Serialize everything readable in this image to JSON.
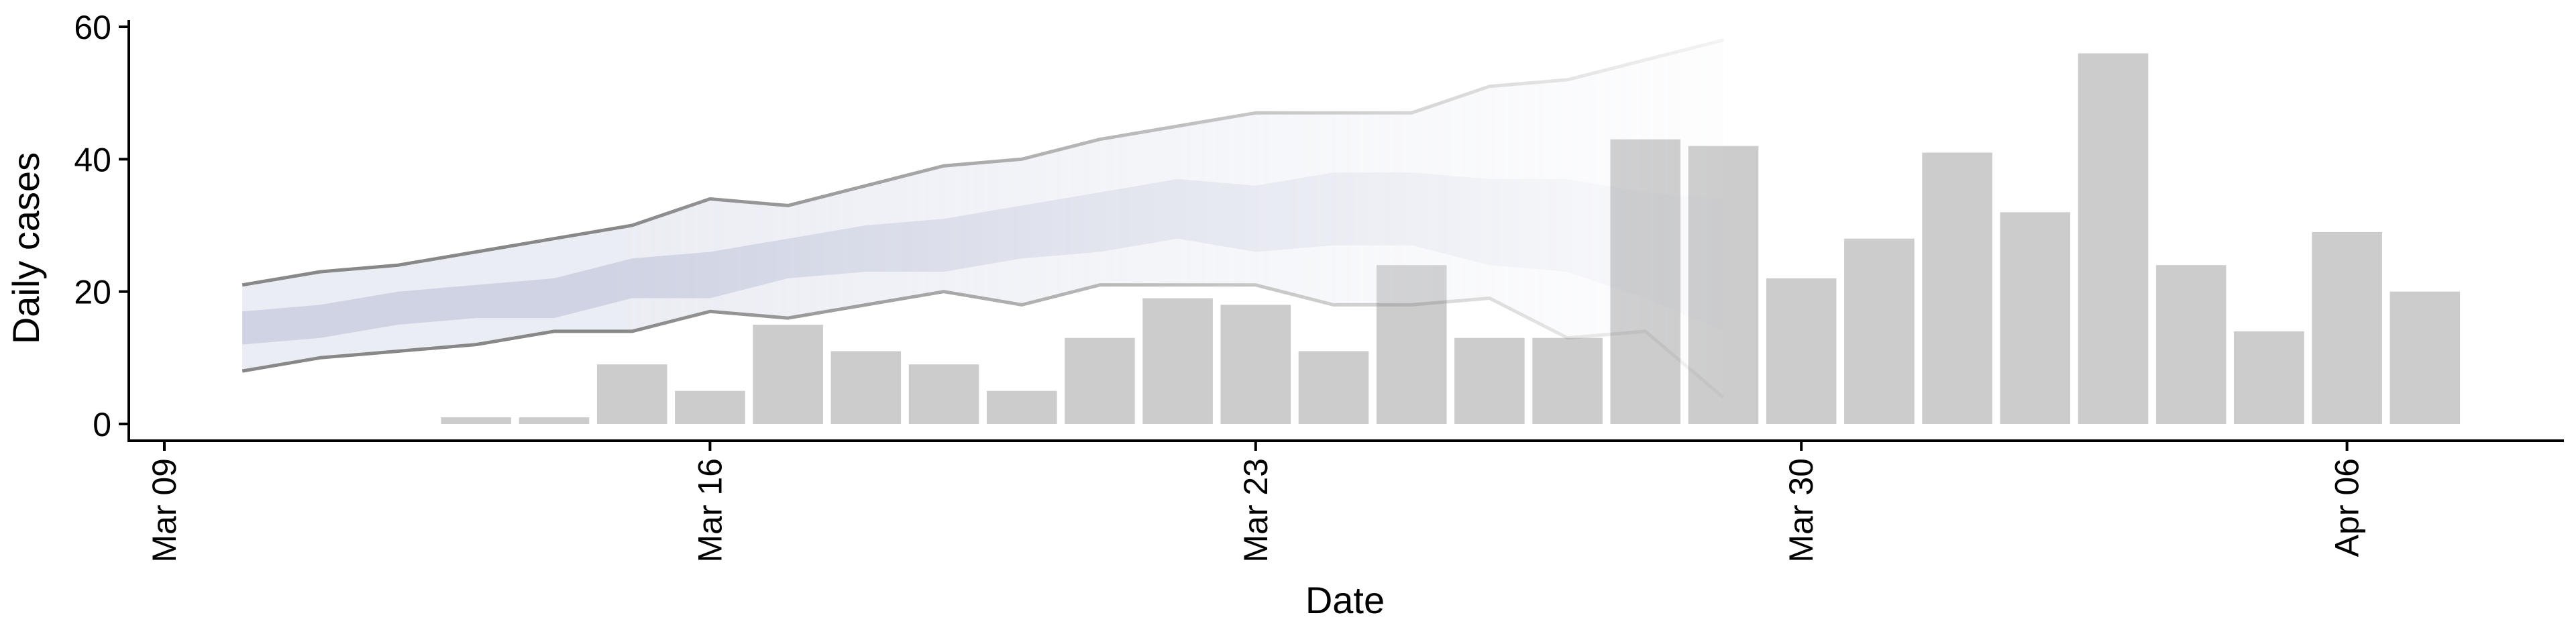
{
  "chart_data": {
    "type": "bar",
    "title": "",
    "xlabel": "Date",
    "ylabel": "Daily cases",
    "xlim": [
      "2020-03-08",
      "2020-04-10"
    ],
    "ylim": [
      0,
      60
    ],
    "x_ticks": [
      {
        "date": "2020-03-09",
        "label": "Mar 09"
      },
      {
        "date": "2020-03-16",
        "label": "Mar 16"
      },
      {
        "date": "2020-03-23",
        "label": "Mar 23"
      },
      {
        "date": "2020-03-30",
        "label": "Mar 30"
      },
      {
        "date": "2020-04-06",
        "label": "Apr 06"
      }
    ],
    "y_ticks": [
      0,
      20,
      40,
      60
    ],
    "grid": false,
    "legend": "none",
    "bars": {
      "color": "#cccccc",
      "dates": [
        "2020-03-13",
        "2020-03-14",
        "2020-03-15",
        "2020-03-16",
        "2020-03-17",
        "2020-03-18",
        "2020-03-19",
        "2020-03-20",
        "2020-03-21",
        "2020-03-22",
        "2020-03-23",
        "2020-03-24",
        "2020-03-25",
        "2020-03-26",
        "2020-03-27",
        "2020-03-28",
        "2020-03-29",
        "2020-03-30",
        "2020-03-31",
        "2020-04-01",
        "2020-04-02",
        "2020-04-03",
        "2020-04-04",
        "2020-04-05",
        "2020-04-06",
        "2020-04-07"
      ],
      "values": [
        1,
        1,
        9,
        5,
        15,
        11,
        9,
        5,
        13,
        19,
        18,
        11,
        24,
        13,
        13,
        43,
        42,
        22,
        28,
        41,
        32,
        56,
        24,
        14,
        29,
        20
      ]
    },
    "forecast": {
      "line_color": "#888888",
      "outer_band_color": "#e3e5f0",
      "inner_band_color": "#c3c8dc",
      "dates": [
        "2020-03-10",
        "2020-03-11",
        "2020-03-12",
        "2020-03-13",
        "2020-03-14",
        "2020-03-15",
        "2020-03-16",
        "2020-03-17",
        "2020-03-18",
        "2020-03-19",
        "2020-03-20",
        "2020-03-21",
        "2020-03-22",
        "2020-03-23",
        "2020-03-24",
        "2020-03-25",
        "2020-03-26",
        "2020-03-27",
        "2020-03-28",
        "2020-03-29"
      ],
      "upper_outer": [
        21,
        23,
        24,
        26,
        28,
        30,
        34,
        33,
        36,
        39,
        40,
        43,
        45,
        47,
        47,
        47,
        51,
        52,
        55,
        58
      ],
      "upper_inner": [
        17,
        18,
        20,
        21,
        22,
        25,
        26,
        28,
        30,
        31,
        33,
        35,
        37,
        36,
        38,
        38,
        37,
        37,
        35,
        34
      ],
      "lower_inner": [
        12,
        13,
        15,
        16,
        16,
        19,
        19,
        22,
        23,
        23,
        25,
        26,
        28,
        26,
        27,
        27,
        24,
        23,
        19,
        14
      ],
      "lower_outer": [
        8,
        10,
        11,
        12,
        14,
        14,
        17,
        16,
        18,
        20,
        18,
        21,
        21,
        21,
        18,
        18,
        19,
        13,
        14,
        4
      ]
    }
  }
}
